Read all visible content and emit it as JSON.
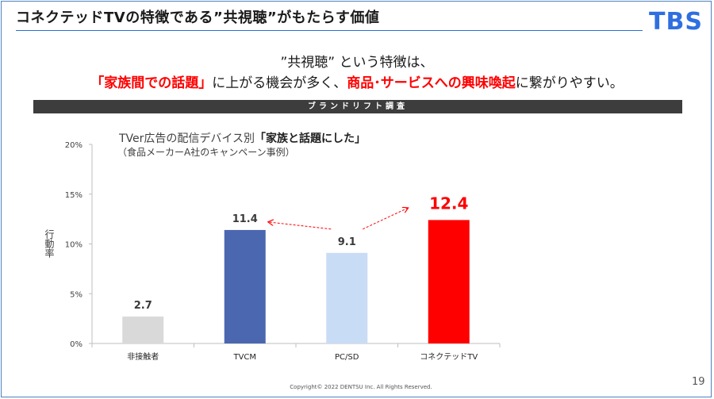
{
  "slide": {
    "title": "コネクテッドTVの特徴である”共視聴”がもたらす価値",
    "logo": "TBS",
    "headline_line1": "”共視聴” という特徴は、",
    "headline_red1": "「家族間での話題」",
    "headline_mid": "に上がる機会が多く、",
    "headline_red2": "商品･サービスへの興味喚起",
    "headline_end": "に繋がりやすい。",
    "banner": "ブランドリフト調査",
    "copyright": "Copyright© 2022 DENTSU Inc. All Rights Reserved.",
    "page_number": "19"
  },
  "chart_data": {
    "type": "bar",
    "title_prefix": "TVer広告の配信デバイス別",
    "title_bold": "「家族と話題にした」",
    "subtitle": "（食品メーカーA社のキャンペーン事例）",
    "ylabel": "行動率",
    "ylim": [
      0,
      20
    ],
    "yticks": [
      "0%",
      "5%",
      "10%",
      "15%",
      "20%"
    ],
    "categories": [
      "非接触者",
      "TVCM",
      "PC/SD",
      "コネクテッドTV"
    ],
    "values": [
      2.7,
      11.4,
      9.1,
      12.4
    ],
    "value_labels": [
      "2.7",
      "11.4",
      "9.1",
      "12.4"
    ],
    "colors": [
      "#d9d9d9",
      "#4a67b0",
      "#c9dcf5",
      "#ff0000"
    ],
    "arrows": [
      "PC/SD → TVCM",
      "PC/SD → コネクテッドTV"
    ],
    "grid": false,
    "legend": "none"
  }
}
